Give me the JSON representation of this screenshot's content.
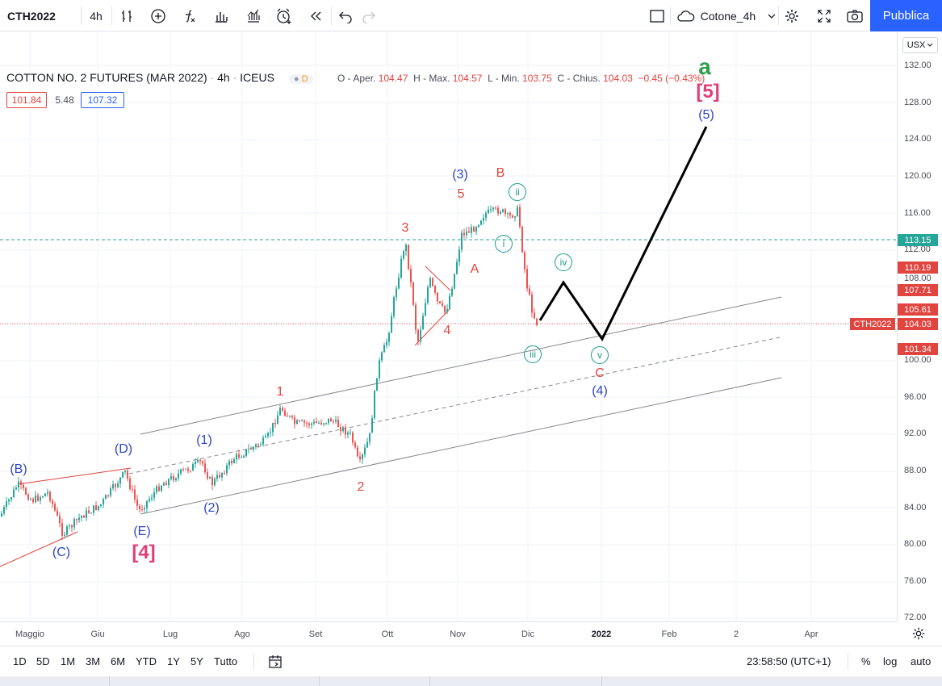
{
  "toolbar": {
    "symbol": "CTH2022",
    "interval": "4h",
    "layout_name": "Cotone_4h",
    "publish_label": "Pubblica"
  },
  "legend": {
    "title": "COTTON NO. 2 FUTURES (MAR 2022)",
    "interval": "4h",
    "exchange": "ICEUS",
    "badge": "D",
    "open_label": "O - Aper.",
    "open": "104.47",
    "high_label": "H - Max.",
    "high": "104.57",
    "low_label": "L - Min.",
    "low": "103.75",
    "close_label": "C - Chius.",
    "close": "104.03",
    "change": "−0.45 (−0.43%)",
    "bid": "101.84",
    "spread": "5.48",
    "ask": "107.32"
  },
  "price_axis": {
    "currency": "USX",
    "ticks": [
      "132.00",
      "128.00",
      "124.00",
      "120.00",
      "116.00",
      "112.00",
      "108.00",
      "100.00",
      "96.00",
      "92.00",
      "88.00",
      "84.00",
      "80.00",
      "76.00",
      "72.00"
    ],
    "labels": {
      "l113": "113.15",
      "l110": "110.19",
      "l107": "107.71",
      "l105": "105.61",
      "l104": "104.03",
      "l101": "101.34",
      "symbol_tag": "CTH2022"
    }
  },
  "time_axis": {
    "ticks": [
      "Maggio",
      "Giu",
      "Lug",
      "Ago",
      "Set",
      "Ott",
      "Nov",
      "Dic",
      "2022",
      "Feb",
      "2",
      "Apr"
    ]
  },
  "wave_labels": {
    "B_paren": "(B)",
    "C_paren": "(C)",
    "D_paren": "(D)",
    "E_paren": "(E)",
    "four_bracket": "[4]",
    "w1_paren": "(1)",
    "w2_paren": "(2)",
    "w1": "1",
    "w2": "2",
    "w3": "3",
    "w4": "4",
    "w5": "5",
    "w3_paren": "(3)",
    "A": "A",
    "B": "B",
    "C": "C",
    "i": "i",
    "ii": "ii",
    "iii": "iii",
    "iv": "iv",
    "v": "v",
    "w4_paren": "(4)",
    "w5_paren": "(5)",
    "five_bracket": "[5]",
    "a": "a"
  },
  "bottom": {
    "ranges": [
      "1D",
      "5D",
      "1M",
      "3M",
      "6M",
      "YTD",
      "1Y",
      "5Y",
      "Tutto"
    ],
    "time": "23:58:50 (UTC+1)",
    "percent": "%",
    "log": "log",
    "auto": "auto"
  },
  "colors": {
    "accent": "#2962ff",
    "up": "#26a69a",
    "down": "#ef5350",
    "wave_red": "#e0453f",
    "wave_blue": "#2d45c4",
    "wave_teal": "#1a9c8c",
    "wave_pink": "#e0407a",
    "wave_green": "#2e9e4a"
  }
}
